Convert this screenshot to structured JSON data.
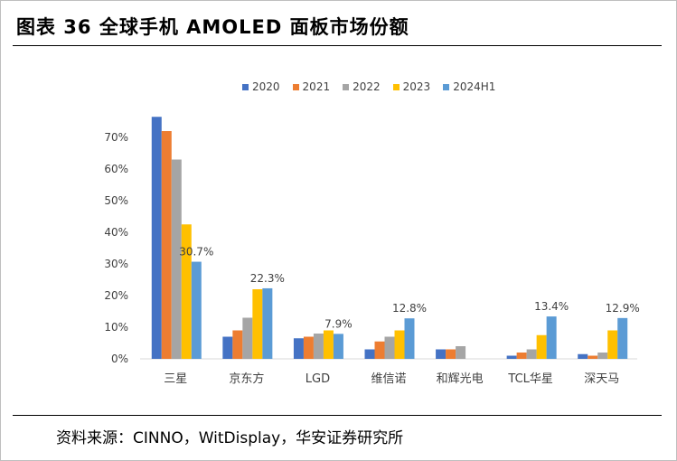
{
  "title": "图表 36 全球手机 AMOLED 面板市场份额",
  "source": "资料来源：CINNO，WitDisplay，华安证券研究所",
  "colors": {
    "2020": "#4472c4",
    "2021": "#ed7d31",
    "2022": "#a5a5a5",
    "2023": "#ffc000",
    "2024H1": "#5b9bd5"
  },
  "chart_data": {
    "type": "bar",
    "categories": [
      "三星",
      "京东方",
      "LGD",
      "维信诺",
      "和辉光电",
      "TCL华星",
      "深天马"
    ],
    "series": [
      {
        "name": "2020",
        "values": [
          76.5,
          7.0,
          6.5,
          3.0,
          3.0,
          1.0,
          1.5
        ]
      },
      {
        "name": "2021",
        "values": [
          72.0,
          9.0,
          7.0,
          5.5,
          3.0,
          2.0,
          1.0
        ]
      },
      {
        "name": "2022",
        "values": [
          63.0,
          13.0,
          8.0,
          7.0,
          4.0,
          3.0,
          2.0
        ]
      },
      {
        "name": "2023",
        "values": [
          42.5,
          22.0,
          9.0,
          9.0,
          0,
          7.5,
          9.0
        ]
      },
      {
        "name": "2024H1",
        "values": [
          30.7,
          22.3,
          7.9,
          12.8,
          0,
          13.4,
          12.9
        ]
      }
    ],
    "data_labels": [
      "30.7%",
      "22.3%",
      "7.9%",
      "12.8%",
      "",
      "13.4%",
      "12.9%"
    ],
    "y_ticks": [
      "0%",
      "10%",
      "20%",
      "30%",
      "40%",
      "50%",
      "60%",
      "70%"
    ],
    "ylim": [
      0,
      80
    ],
    "grid": false,
    "legend_position": "top-center"
  }
}
